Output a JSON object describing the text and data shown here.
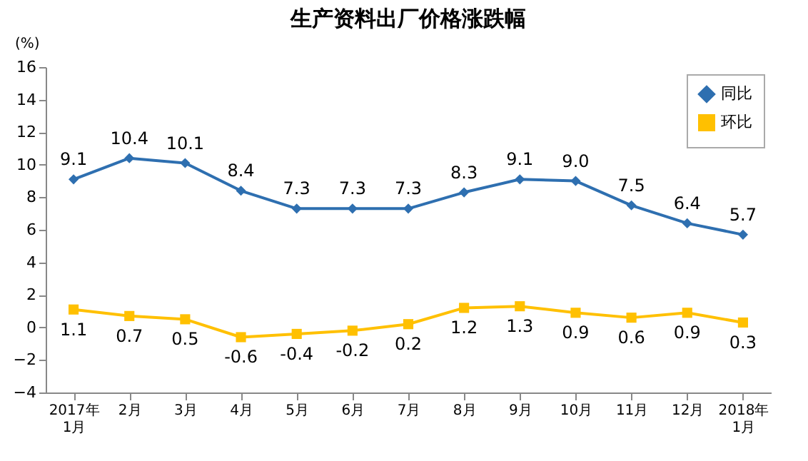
{
  "chart_data": {
    "type": "line",
    "title": "生产资料出厂价格涨跌幅",
    "ylabel": "(%)",
    "categories": [
      "2017年\n1月",
      "2月",
      "3月",
      "4月",
      "5月",
      "6月",
      "7月",
      "8月",
      "9月",
      "10月",
      "11月",
      "12月",
      "2018年\n1月"
    ],
    "series": [
      {
        "name": "同比",
        "color": "#2e6fb0",
        "marker": "diamond",
        "values": [
          9.1,
          10.4,
          10.1,
          8.4,
          7.3,
          7.3,
          7.3,
          8.3,
          9.1,
          9.0,
          7.5,
          6.4,
          5.7
        ],
        "value_labels": [
          "9.1",
          "10.4",
          "10.1",
          "8.4",
          "7.3",
          "7.3",
          "7.3",
          "8.3",
          "9.1",
          "9.0",
          "7.5",
          "6.4",
          "5.7"
        ]
      },
      {
        "name": "环比",
        "color": "#ffc000",
        "marker": "square",
        "values": [
          1.1,
          0.7,
          0.5,
          -0.6,
          -0.4,
          -0.2,
          0.2,
          1.2,
          1.3,
          0.9,
          0.6,
          0.9,
          0.3
        ],
        "value_labels": [
          "1.1",
          "0.7",
          "0.5",
          "-0.6",
          "-0.4",
          "-0.2",
          "0.2",
          "1.2",
          "1.3",
          "0.9",
          "0.6",
          "0.9",
          "0.3"
        ]
      }
    ],
    "ylim": [
      -4,
      16
    ],
    "yticks": [
      -4,
      -2,
      0,
      2,
      4,
      6,
      8,
      10,
      12,
      14,
      16
    ],
    "grid": false,
    "legend": "top right"
  }
}
